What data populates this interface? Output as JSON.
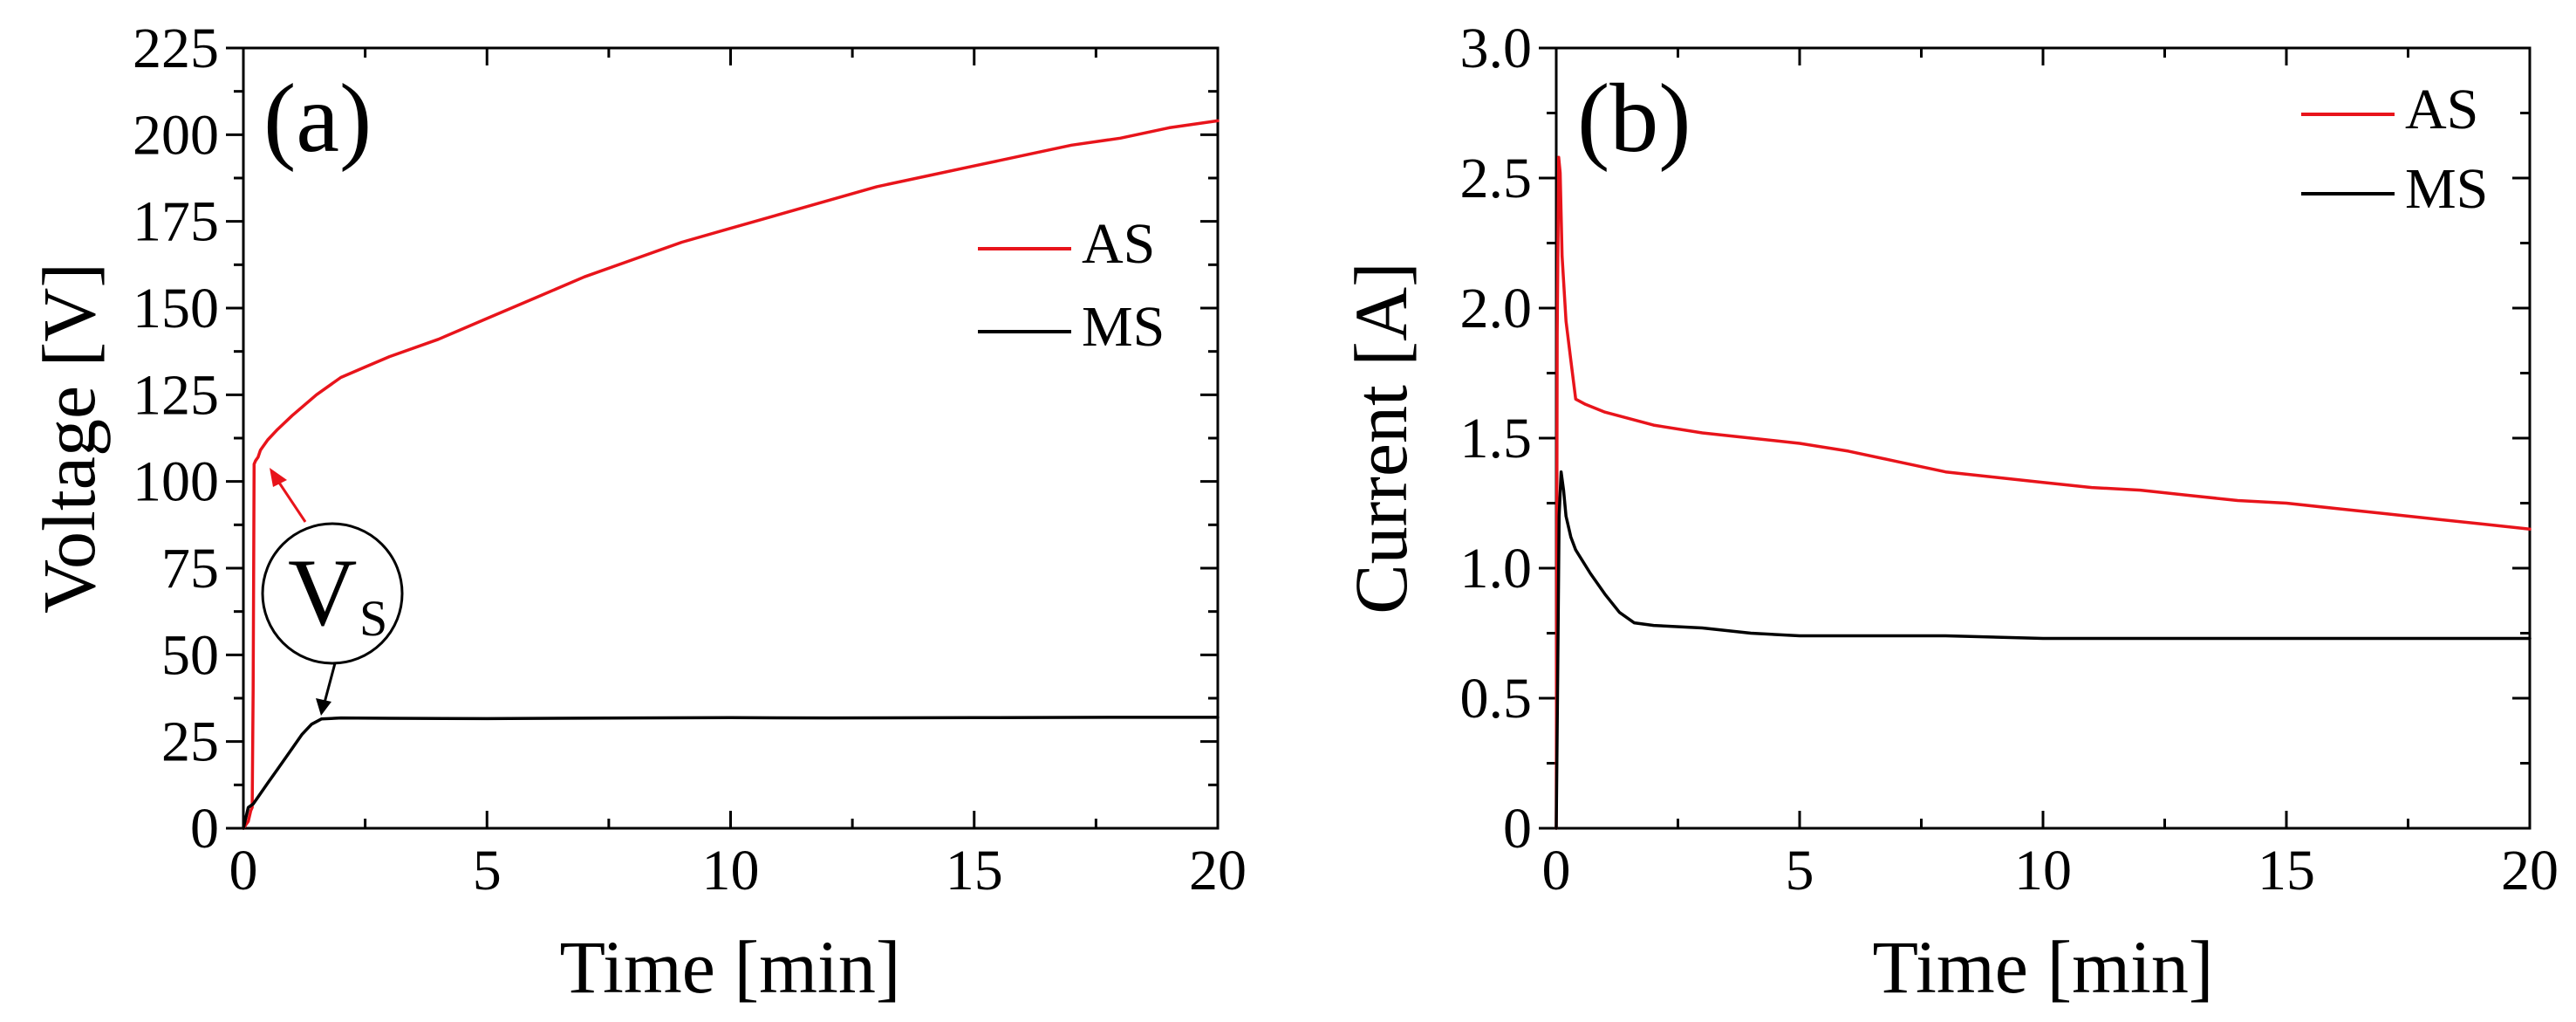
{
  "chart_data": [
    {
      "type": "line",
      "panel_label": "(a)",
      "xlabel": "Time [min]",
      "ylabel": "Voltage [V]",
      "xlim": [
        0,
        20
      ],
      "ylim": [
        0,
        225
      ],
      "xticks": [
        0,
        5,
        10,
        15,
        20
      ],
      "yticks": [
        0,
        25,
        50,
        75,
        100,
        125,
        150,
        175,
        200,
        225
      ],
      "grid": false,
      "legend_position": "right, upper-middle",
      "series": [
        {
          "name": "AS",
          "color": "#e8141b",
          "x": [
            0,
            0.1,
            0.15,
            0.18,
            0.2,
            0.22,
            0.25,
            0.3,
            0.35,
            0.4,
            0.5,
            0.7,
            1,
            1.5,
            2,
            2.5,
            3,
            4,
            5,
            6,
            7,
            8,
            9,
            10,
            11,
            12,
            13,
            14,
            15,
            16,
            17,
            18,
            19,
            20
          ],
          "y": [
            0,
            2,
            5,
            6,
            40,
            105,
            106,
            107,
            109,
            110,
            112,
            115,
            119,
            125,
            130,
            133,
            136,
            141,
            147,
            153,
            159,
            164,
            169,
            173,
            177,
            181,
            185,
            188,
            191,
            194,
            197,
            199,
            202,
            204
          ]
        },
        {
          "name": "MS",
          "color": "#000000",
          "x": [
            0,
            0.05,
            0.1,
            0.2,
            0.3,
            0.5,
            0.7,
            1,
            1.2,
            1.4,
            1.6,
            2,
            3,
            5,
            8,
            10,
            12,
            15,
            18,
            20
          ],
          "y": [
            0,
            3,
            6,
            7,
            9,
            13,
            17,
            23,
            27,
            30,
            31.5,
            31.8,
            31.7,
            31.6,
            31.8,
            31.9,
            31.8,
            31.9,
            32,
            32
          ]
        }
      ],
      "annotations": [
        {
          "text": "V",
          "subscript": "S",
          "points_to": [
            [
              0.5,
              108
            ],
            [
              1.6,
              32
            ]
          ]
        }
      ]
    },
    {
      "type": "line",
      "panel_label": "(b)",
      "xlabel": "Time [min]",
      "ylabel": "Current [A]",
      "xlim": [
        0,
        20
      ],
      "ylim": [
        0,
        3.0
      ],
      "xticks": [
        0,
        5,
        10,
        15,
        20
      ],
      "yticks": [
        "0",
        "0.5",
        "1.0",
        "1.5",
        "2.0",
        "2.5",
        "3.0"
      ],
      "grid": false,
      "legend_position": "top-right",
      "series": [
        {
          "name": "AS",
          "color": "#e8141b",
          "x": [
            0,
            0.02,
            0.05,
            0.08,
            0.12,
            0.2,
            0.3,
            0.4,
            0.6,
            1,
            2,
            3,
            4,
            5,
            6,
            7,
            8,
            9,
            10,
            11,
            12,
            13,
            14,
            15,
            16,
            17,
            18,
            19,
            20
          ],
          "y": [
            0,
            1.9,
            2.58,
            2.52,
            2.2,
            1.95,
            1.8,
            1.65,
            1.63,
            1.6,
            1.55,
            1.52,
            1.5,
            1.48,
            1.45,
            1.41,
            1.37,
            1.35,
            1.33,
            1.31,
            1.3,
            1.28,
            1.26,
            1.25,
            1.23,
            1.21,
            1.19,
            1.17,
            1.15
          ]
        },
        {
          "name": "MS",
          "color": "#000000",
          "x": [
            0,
            0.03,
            0.06,
            0.1,
            0.15,
            0.2,
            0.3,
            0.4,
            0.5,
            0.7,
            1,
            1.3,
            1.6,
            2,
            3,
            4,
            5,
            6,
            8,
            10,
            12,
            15,
            18,
            20
          ],
          "y": [
            0,
            0.6,
            1.2,
            1.37,
            1.3,
            1.2,
            1.12,
            1.07,
            1.04,
            0.98,
            0.9,
            0.83,
            0.79,
            0.78,
            0.77,
            0.75,
            0.74,
            0.74,
            0.74,
            0.73,
            0.73,
            0.73,
            0.73,
            0.73
          ]
        }
      ]
    }
  ]
}
